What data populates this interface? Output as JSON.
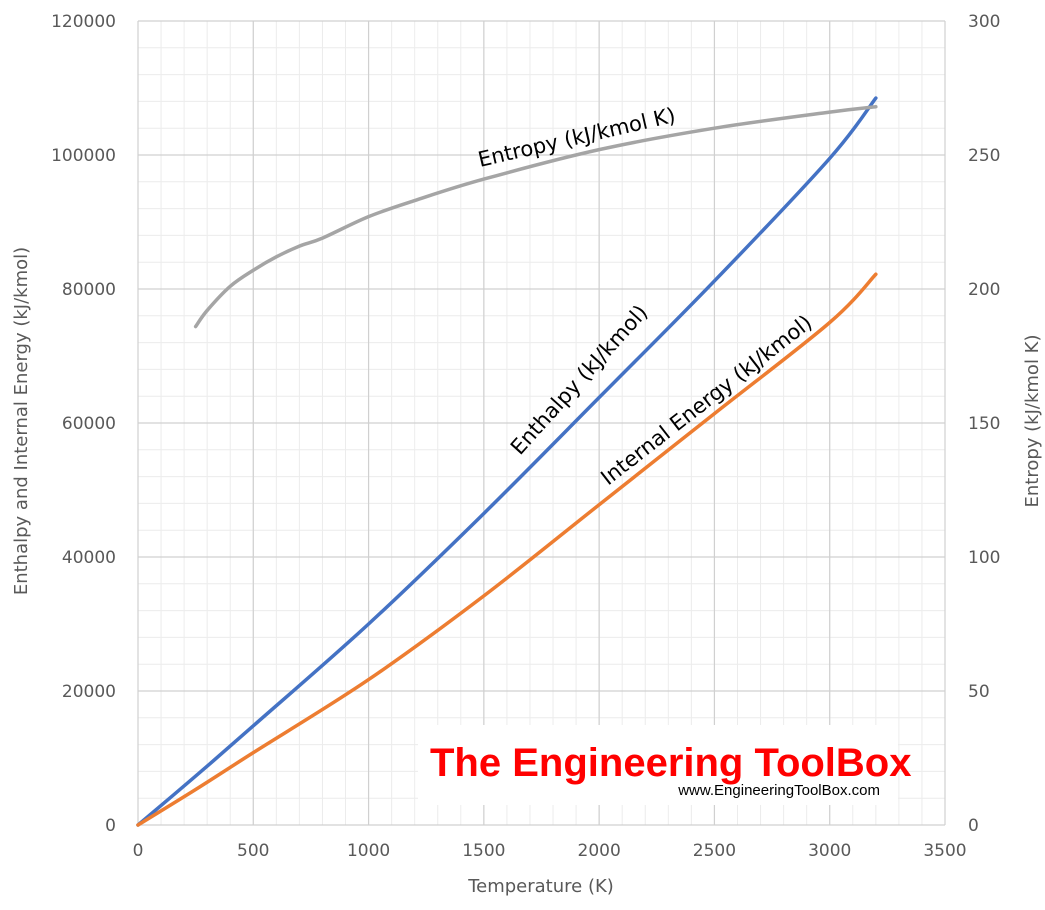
{
  "chart_data": {
    "type": "line",
    "xlabel": "Temperature  (K)",
    "ylabel": "Enthalpy  and Internal Energy (kJ/kmol)",
    "y2label": "Entropy  (kJ/kmol K)",
    "xlim": [
      0,
      3500
    ],
    "ylim": [
      0,
      120000
    ],
    "y2lim": [
      0,
      300
    ],
    "x_ticks": [
      0,
      500,
      1000,
      1500,
      2000,
      2500,
      3000,
      3500
    ],
    "y_ticks": [
      0,
      20000,
      40000,
      60000,
      80000,
      100000,
      120000
    ],
    "y2_ticks": [
      0,
      50,
      100,
      150,
      200,
      250,
      300
    ],
    "grid": true,
    "series": [
      {
        "name": "Enthalpy (kJ/kmol)",
        "axis": "left",
        "color": "#4472c4",
        "points": [
          [
            0,
            0
          ],
          [
            250,
            7300
          ],
          [
            500,
            14800
          ],
          [
            1000,
            30000
          ],
          [
            1500,
            46500
          ],
          [
            2000,
            63800
          ],
          [
            2500,
            81200
          ],
          [
            3000,
            99500
          ],
          [
            3200,
            108500
          ]
        ]
      },
      {
        "name": "Internal Energy (kJ/kmol)",
        "axis": "left",
        "color": "#ed7d31",
        "points": [
          [
            0,
            0
          ],
          [
            250,
            5300
          ],
          [
            500,
            10800
          ],
          [
            1000,
            21700
          ],
          [
            1500,
            34200
          ],
          [
            2000,
            47800
          ],
          [
            2500,
            61400
          ],
          [
            3000,
            75000
          ],
          [
            3200,
            82200
          ]
        ]
      },
      {
        "name": "Entropy (kJ/kmol K)",
        "axis": "right",
        "color": "#a5a5a5",
        "points": [
          [
            250,
            186
          ],
          [
            300,
            192
          ],
          [
            400,
            201
          ],
          [
            500,
            207
          ],
          [
            600,
            212
          ],
          [
            700,
            216
          ],
          [
            800,
            219
          ],
          [
            1000,
            227
          ],
          [
            1200,
            233
          ],
          [
            1500,
            241
          ],
          [
            2000,
            252
          ],
          [
            2500,
            260
          ],
          [
            3000,
            266
          ],
          [
            3200,
            268
          ]
        ]
      }
    ]
  },
  "watermark": {
    "title": "The Engineering ToolBox",
    "url": "www.EngineeringToolBox.com"
  }
}
